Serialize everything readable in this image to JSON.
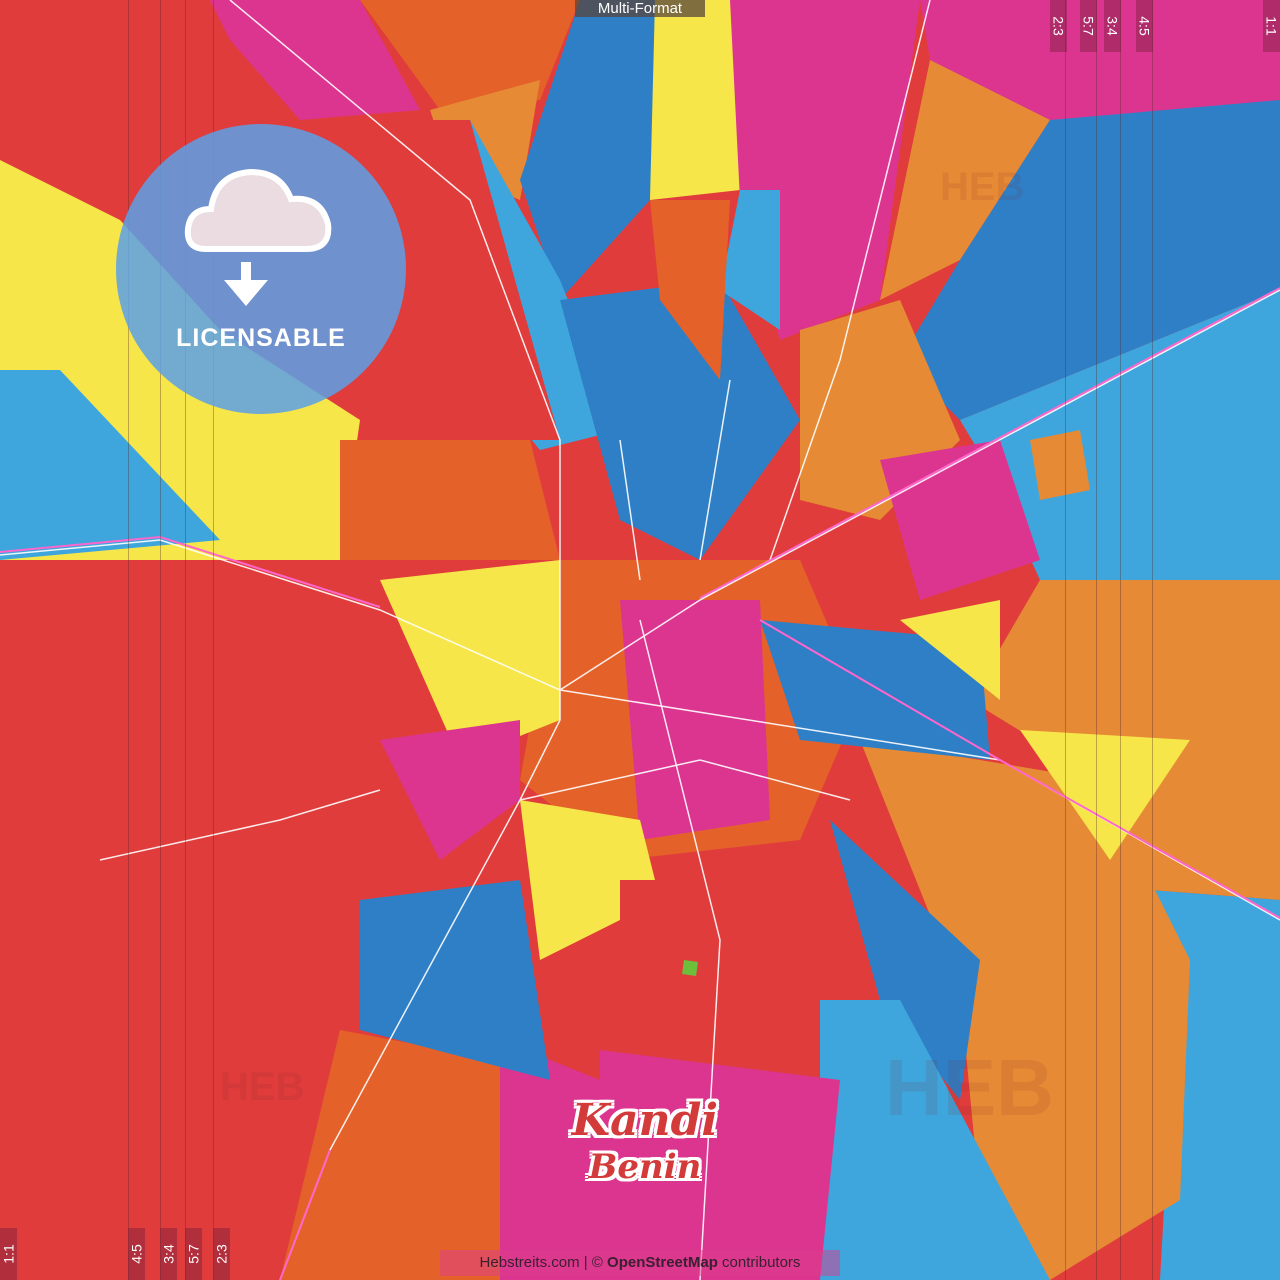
{
  "header": {
    "format_label": "Multi-Format"
  },
  "aspect_ratios": {
    "top": [
      "2:3",
      "5:7",
      "3:4",
      "4:5",
      "1:1"
    ],
    "bottom": [
      "1:1",
      "4:5",
      "3:4",
      "5:7",
      "2:3"
    ]
  },
  "badge": {
    "label": "LICENSABLE",
    "icon": "cloud-download-icon"
  },
  "map_title": {
    "city": "Kandi",
    "country": "Benin"
  },
  "attribution": {
    "site": "Hebstreits.com",
    "separator": " | © ",
    "source": "OpenStreetMap",
    "suffix": " contributors"
  },
  "watermark": "HEB",
  "colors": {
    "red": "#e03c3c",
    "orange": "#e4622a",
    "light_orange": "#e68a35",
    "yellow": "#f7e64a",
    "pink": "#dc3590",
    "blue": "#2f7fc6",
    "light_blue": "#3ea6dc",
    "green": "#6bbf3a"
  }
}
